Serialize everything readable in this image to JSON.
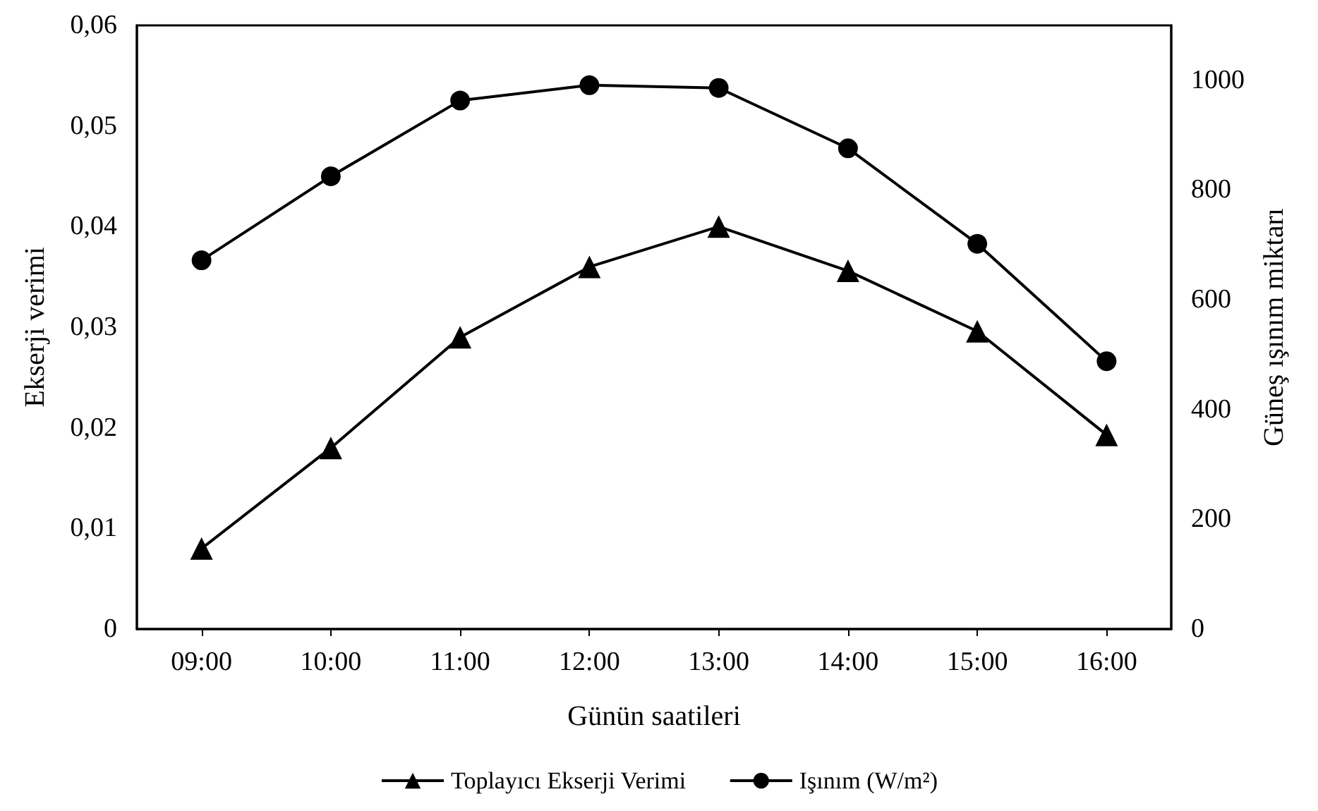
{
  "chart_data": {
    "type": "line",
    "xlabel": "Günün saatileri",
    "ylabel": "Ekserji verimi",
    "y2label": "Güneş ışınım miktarı",
    "categories": [
      "09:00",
      "10:00",
      "11:00",
      "12:00",
      "13:00",
      "14:00",
      "15:00",
      "16:00"
    ],
    "series": [
      {
        "name": "Toplayıcı Ekserji Verimi",
        "color": "#000000",
        "marker": "triangle",
        "values": [
          0.008,
          0.018,
          0.029,
          0.036,
          0.04,
          0.0356,
          0.0296,
          0.0193
        ]
      },
      {
        "name": "Işınım (W/m²)",
        "color": "#000000",
        "marker": "circle",
        "axis": "y2",
        "values": [
          672,
          825,
          963,
          991,
          986,
          876,
          702,
          488
        ]
      }
    ],
    "ylim": [
      0,
      0.06
    ],
    "yticks": [
      {
        "value": 0,
        "label": "0"
      },
      {
        "value": 0.01,
        "label": "0,01"
      },
      {
        "value": 0.02,
        "label": "0,02"
      },
      {
        "value": 0.03,
        "label": "0,03"
      },
      {
        "value": 0.04,
        "label": "0,04"
      },
      {
        "value": 0.05,
        "label": "0,05"
      },
      {
        "value": 0.06,
        "label": "0,06"
      }
    ],
    "y2lim": [
      0,
      1100
    ],
    "y2ticks": [
      0,
      200,
      400,
      600,
      800,
      1000
    ],
    "grid": false,
    "legend": "bottom",
    "line_style": "solid"
  }
}
